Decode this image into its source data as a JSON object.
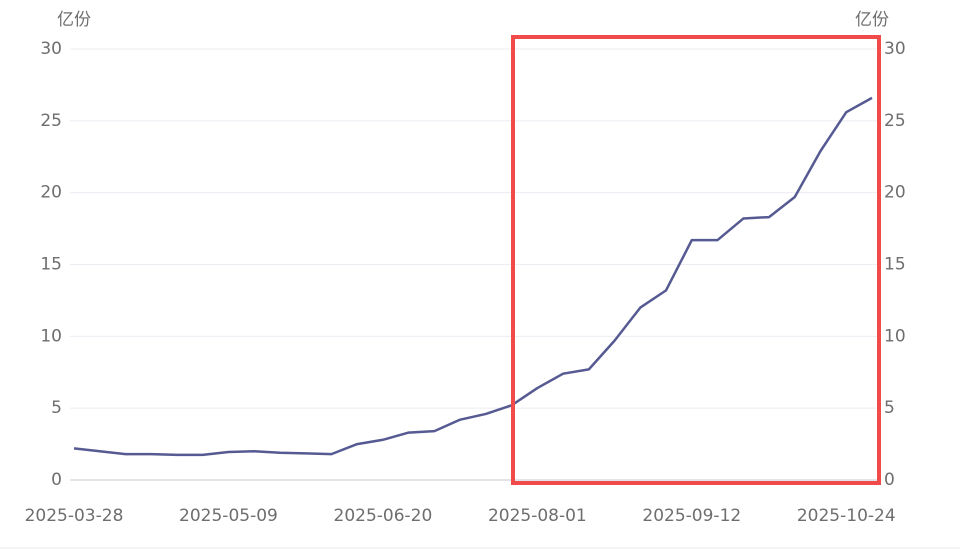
{
  "chart_data": {
    "type": "line",
    "y_label": "亿份",
    "categories": [
      "2025-03-28",
      null,
      null,
      null,
      null,
      null,
      "2025-05-09",
      null,
      null,
      null,
      null,
      null,
      "2025-06-20",
      null,
      null,
      null,
      null,
      null,
      "2025-08-01",
      null,
      null,
      null,
      null,
      null,
      "2025-09-12",
      null,
      null,
      null,
      null,
      null,
      "2025-10-24",
      null
    ],
    "series": [
      {
        "color": "#565a92",
        "values": [
          2.2,
          2.0,
          1.8,
          1.8,
          1.75,
          1.75,
          1.95,
          2.0,
          1.9,
          1.85,
          1.8,
          2.5,
          2.8,
          3.3,
          3.4,
          4.2,
          4.6,
          5.2,
          6.4,
          7.4,
          7.7,
          9.7,
          12.0,
          13.2,
          16.7,
          16.7,
          18.2,
          18.3,
          19.7,
          22.9,
          25.6,
          26.6
        ]
      }
    ],
    "ylim": [
      0,
      30
    ],
    "yticks": [
      0,
      5,
      10,
      15,
      20,
      25,
      30
    ],
    "grid": true
  }
}
